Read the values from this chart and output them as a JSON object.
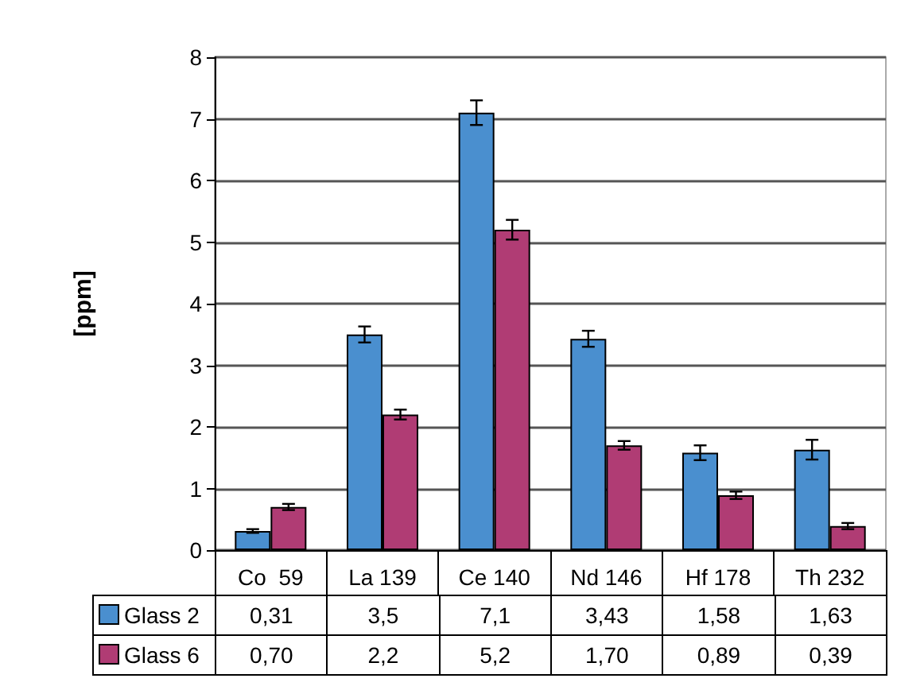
{
  "chart_data": {
    "type": "bar",
    "ylabel": "[ppm]",
    "categories": [
      "Co  59",
      "La 139",
      "Ce 140",
      "Nd 146",
      "Hf 178",
      "Th 232"
    ],
    "series": [
      {
        "name": "Glass 2",
        "color": "#4a8fcf",
        "values": [
          0.31,
          3.5,
          7.1,
          3.43,
          1.58,
          1.63
        ],
        "value_labels": [
          "0,31",
          "3,5",
          "7,1",
          "3,43",
          "1,58",
          "1,63"
        ],
        "errors": [
          0.03,
          0.13,
          0.2,
          0.13,
          0.12,
          0.16
        ]
      },
      {
        "name": "Glass 6",
        "color": "#b03c74",
        "values": [
          0.7,
          2.2,
          5.2,
          1.7,
          0.89,
          0.39
        ],
        "value_labels": [
          "0,70",
          "2,2",
          "5,2",
          "1,70",
          "0,89",
          "0,39"
        ],
        "errors": [
          0.05,
          0.08,
          0.16,
          0.07,
          0.06,
          0.05
        ]
      }
    ],
    "ylim": [
      0,
      8
    ],
    "yticks": [
      0,
      1,
      2,
      3,
      4,
      5,
      6,
      7,
      8
    ],
    "grid": "y",
    "legend": "bottom"
  }
}
